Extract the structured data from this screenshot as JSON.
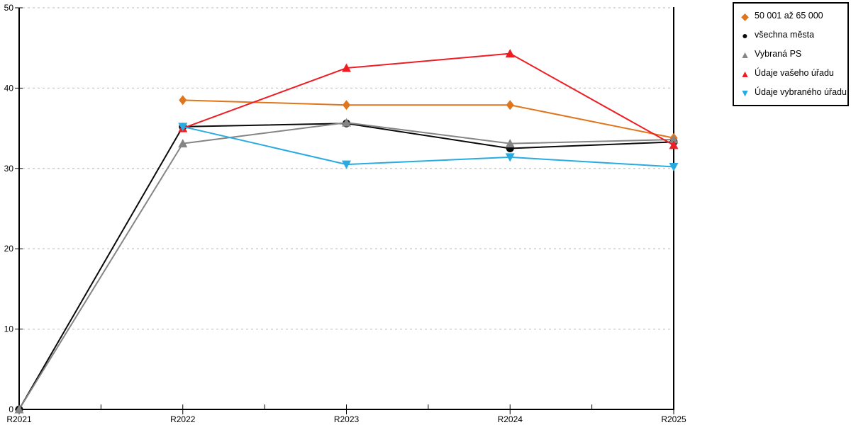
{
  "page": {
    "background": "#FFFFFF"
  },
  "chart_data": {
    "type": "line",
    "title": "",
    "xlabel": "",
    "ylabel": "",
    "categories": [
      "R2021",
      "R2022",
      "R2023",
      "R2024",
      "R2025"
    ],
    "series": [
      {
        "name": "50 001 až 65 000",
        "marker": "diamond",
        "color": "#E0751C",
        "values": [
          null,
          38.5,
          37.9,
          37.9,
          33.8
        ]
      },
      {
        "name": "všechna města",
        "marker": "circle",
        "color": "#0a0a0a",
        "values": [
          0,
          35.2,
          35.6,
          32.5,
          33.3
        ]
      },
      {
        "name": "Vybraná PS",
        "marker": "triangle-up",
        "color": "#858585",
        "values": [
          0,
          33.1,
          35.7,
          33.1,
          33.6
        ]
      },
      {
        "name": "Údaje vašeho úřadu",
        "marker": "triangle-up",
        "color": "#EE1C23",
        "values": [
          null,
          35.0,
          42.5,
          44.3,
          32.9
        ]
      },
      {
        "name": "Údaje vybraného úřadu",
        "marker": "triangle-down",
        "color": "#29ABE2",
        "values": [
          null,
          35.2,
          30.5,
          31.4,
          30.2
        ]
      }
    ],
    "ylim": [
      0,
      50
    ],
    "yticks": [
      0,
      10,
      20,
      30,
      40,
      50
    ],
    "grid": {
      "horizontal": true,
      "style": "dashed",
      "color": "#C8C8C8"
    },
    "axis_color": "#000000",
    "tick_label_color": "#000000",
    "legend_position": "top-right"
  },
  "legend": {
    "border_color": "#000000",
    "background": "#FFFFFF"
  }
}
